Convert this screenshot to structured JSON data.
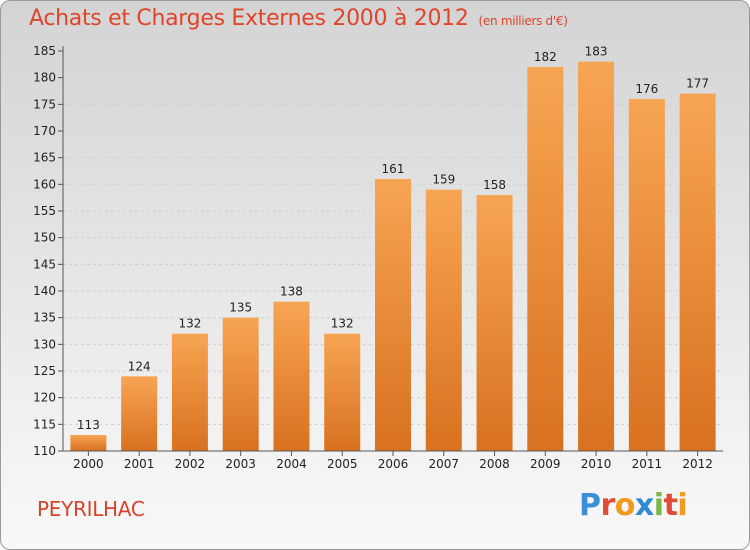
{
  "chart_data": {
    "type": "bar",
    "title": "Achats et Charges Externes 2000 à 2012",
    "subtitle": "(en milliers d'€)",
    "categories": [
      "2000",
      "2001",
      "2002",
      "2003",
      "2004",
      "2005",
      "2006",
      "2007",
      "2008",
      "2009",
      "2010",
      "2011",
      "2012"
    ],
    "values": [
      113,
      124,
      132,
      135,
      138,
      132,
      161,
      159,
      158,
      182,
      183,
      176,
      177
    ],
    "ylim": [
      110,
      185
    ],
    "yticks": [
      110,
      115,
      120,
      125,
      130,
      135,
      140,
      145,
      150,
      155,
      160,
      165,
      170,
      175,
      180,
      185
    ],
    "grid": true,
    "bar_color": "#f5a04e"
  },
  "footer": {
    "commune": "PEYRILHAC",
    "logo_letters": [
      "P",
      "r",
      "o",
      "x",
      "i",
      "t",
      "i"
    ],
    "logo_colors": [
      "#3b8fd6",
      "#e14b3a",
      "#f29a1e",
      "#2f8bd4",
      "#7ab648",
      "#e14b3a",
      "#f29a1e"
    ]
  }
}
